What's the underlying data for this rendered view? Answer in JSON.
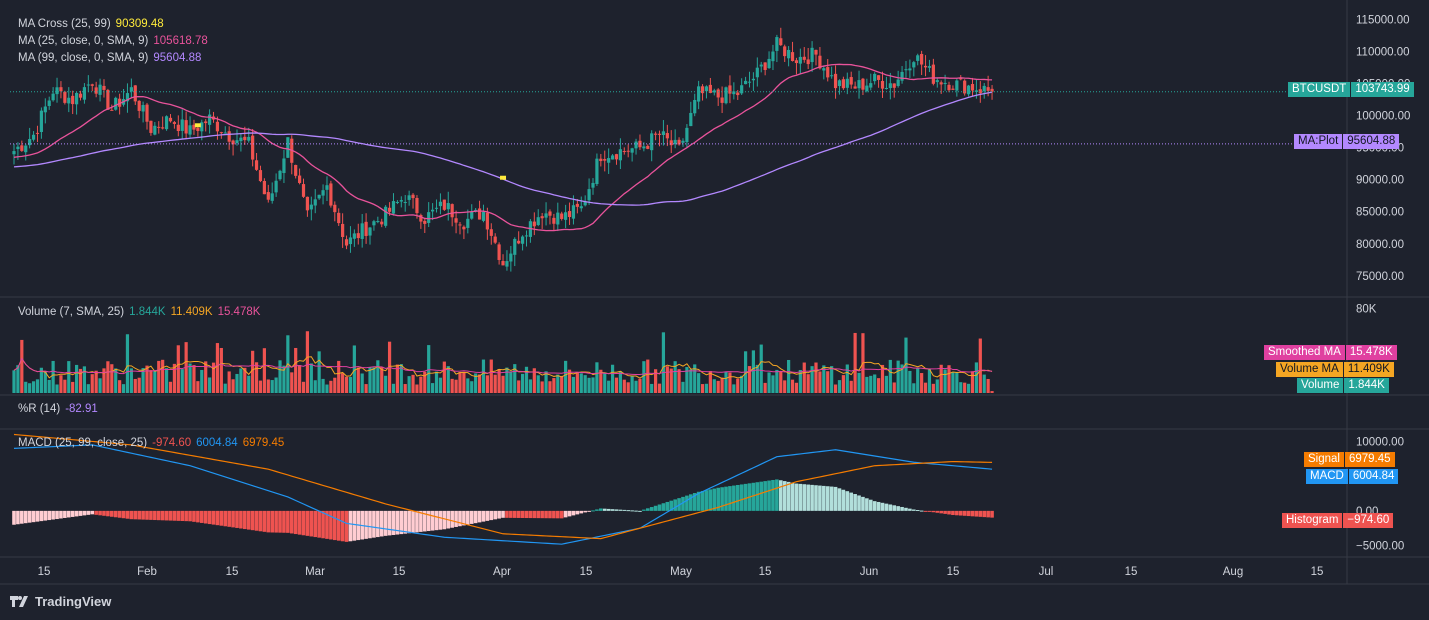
{
  "brand": {
    "name": "TradingView",
    "icon": "tradingview-logo-icon"
  },
  "colors": {
    "bg": "#1e222d",
    "up": "#26a69a",
    "down": "#ef5350",
    "ma25": "#e9539b",
    "ma99": "#b388ff",
    "vol_ma": "#f5a623",
    "smoothed_ma": "#e040a0",
    "macd": "#2196f3",
    "signal": "#f57c00",
    "hist_up_strong": "#26a69a",
    "hist_up_weak": "#b2dfdb",
    "hist_dn_strong": "#ef5350",
    "hist_dn_weak": "#ffcdd2",
    "price_line": "#26a69a",
    "cross_marker": "#ffeb3b"
  },
  "legends": {
    "ma_cross": {
      "label": "MA Cross (25, 99)",
      "value": "90309.48",
      "color": "#ffeb3b"
    },
    "ma25": {
      "label": "MA (25, close, 0, SMA, 9)",
      "value": "105618.78",
      "color": "#e9539b"
    },
    "ma99": {
      "label": "MA (99, close, 0, SMA, 9)",
      "value": "95604.88",
      "color": "#b388ff"
    },
    "volume": {
      "label": "Volume (7, SMA, 25)",
      "v1": "1.844K",
      "v2": "11.409K",
      "v3": "15.478K"
    },
    "wr": {
      "label": "%R (14)",
      "value": "-82.91"
    },
    "macd": {
      "label": "MACD (25, 99, close, 25)",
      "v1": "-974.60",
      "v2": "6004.84",
      "v3": "6979.45"
    }
  },
  "tags": {
    "btc": {
      "name": "BTCUSDT",
      "value": "103743.99"
    },
    "maplot": {
      "name": "MA:Plot",
      "value": "95604.88"
    },
    "smoothed": {
      "name": "Smoothed MA",
      "value": "15.478K"
    },
    "volma": {
      "name": "Volume MA",
      "value": "11.409K"
    },
    "volume": {
      "name": "Volume",
      "value": "1.844K"
    },
    "signal": {
      "name": "Signal",
      "value": "6979.45"
    },
    "macd": {
      "name": "MACD",
      "value": "6004.84"
    },
    "histogram": {
      "name": "Histogram",
      "value": "−974.60"
    }
  },
  "chart_data": [
    {
      "type": "candlestick",
      "name": "BTCUSDT",
      "x_ticks": [
        "15",
        "Feb",
        "15",
        "Mar",
        "15",
        "Apr",
        "15",
        "May",
        "15",
        "Jun",
        "15",
        "Jul",
        "15",
        "Aug",
        "15"
      ],
      "y_ticks": [
        "115000.00",
        "110000.00",
        "105000.00",
        "100000.00",
        "95000.00",
        "90000.00",
        "85000.00",
        "80000.00",
        "75000.00"
      ],
      "ylim": [
        72000,
        116500
      ],
      "close_anchors": [
        [
          0,
          94500
        ],
        [
          5,
          97000
        ],
        [
          10,
          104000
        ],
        [
          15,
          102500
        ],
        [
          20,
          105500
        ],
        [
          25,
          101000
        ],
        [
          30,
          104000
        ],
        [
          35,
          98000
        ],
        [
          40,
          99500
        ],
        [
          45,
          97500
        ],
        [
          50,
          99500
        ],
        [
          55,
          97000
        ],
        [
          60,
          95500
        ],
        [
          65,
          86000
        ],
        [
          70,
          96000
        ],
        [
          75,
          84000
        ],
        [
          80,
          89000
        ],
        [
          85,
          80000
        ],
        [
          90,
          82500
        ],
        [
          95,
          84500
        ],
        [
          100,
          87500
        ],
        [
          105,
          84000
        ],
        [
          110,
          86000
        ],
        [
          115,
          83500
        ],
        [
          120,
          85000
        ],
        [
          125,
          77000
        ],
        [
          130,
          82000
        ],
        [
          135,
          85000
        ],
        [
          140,
          84000
        ],
        [
          145,
          85500
        ],
        [
          150,
          94000
        ],
        [
          155,
          94500
        ],
        [
          160,
          95000
        ],
        [
          165,
          97000
        ],
        [
          170,
          94500
        ],
        [
          175,
          103500
        ],
        [
          180,
          103000
        ],
        [
          185,
          103500
        ],
        [
          190,
          106500
        ],
        [
          195,
          111000
        ],
        [
          200,
          109000
        ],
        [
          205,
          109500
        ],
        [
          210,
          105000
        ],
        [
          215,
          104500
        ],
        [
          220,
          105500
        ],
        [
          225,
          105000
        ],
        [
          230,
          109500
        ],
        [
          235,
          106000
        ],
        [
          240,
          105000
        ],
        [
          245,
          104500
        ],
        [
          250,
          103744
        ]
      ],
      "ma25_last": 105618.78,
      "ma99_last": 95604.88,
      "ma_cross": 90309.48,
      "last_close": 103743.99
    },
    {
      "type": "bar",
      "name": "Volume",
      "y_ticks": [
        "80K"
      ],
      "ylim": [
        0,
        90000
      ],
      "volume_ma": 11409,
      "smoothed_ma": 15478,
      "last_volume": 1844
    },
    {
      "type": "line",
      "name": "%R (14)",
      "last": -82.91
    },
    {
      "type": "line",
      "name": "MACD (25, 99, close, 25)",
      "y_ticks": [
        "10000.00",
        "5000.00",
        "0.00",
        "−5000.00"
      ],
      "ylim": [
        -6500,
        11500
      ],
      "macd_anchors": [
        [
          0,
          9000
        ],
        [
          20,
          9500
        ],
        [
          45,
          6500
        ],
        [
          70,
          2000
        ],
        [
          85,
          -1800
        ],
        [
          110,
          -3800
        ],
        [
          140,
          -4800
        ],
        [
          160,
          -2500
        ],
        [
          175,
          2500
        ],
        [
          195,
          7800
        ],
        [
          210,
          8800
        ],
        [
          230,
          7000
        ],
        [
          250,
          6004.84
        ]
      ],
      "signal_anchors": [
        [
          0,
          11000
        ],
        [
          30,
          9500
        ],
        [
          65,
          6000
        ],
        [
          95,
          1000
        ],
        [
          125,
          -3300
        ],
        [
          150,
          -4000
        ],
        [
          180,
          500
        ],
        [
          200,
          4200
        ],
        [
          220,
          6500
        ],
        [
          240,
          7100
        ],
        [
          250,
          6979.45
        ]
      ],
      "histogram_last": -974.6,
      "macd_last": 6004.84,
      "signal_last": 6979.45
    }
  ]
}
